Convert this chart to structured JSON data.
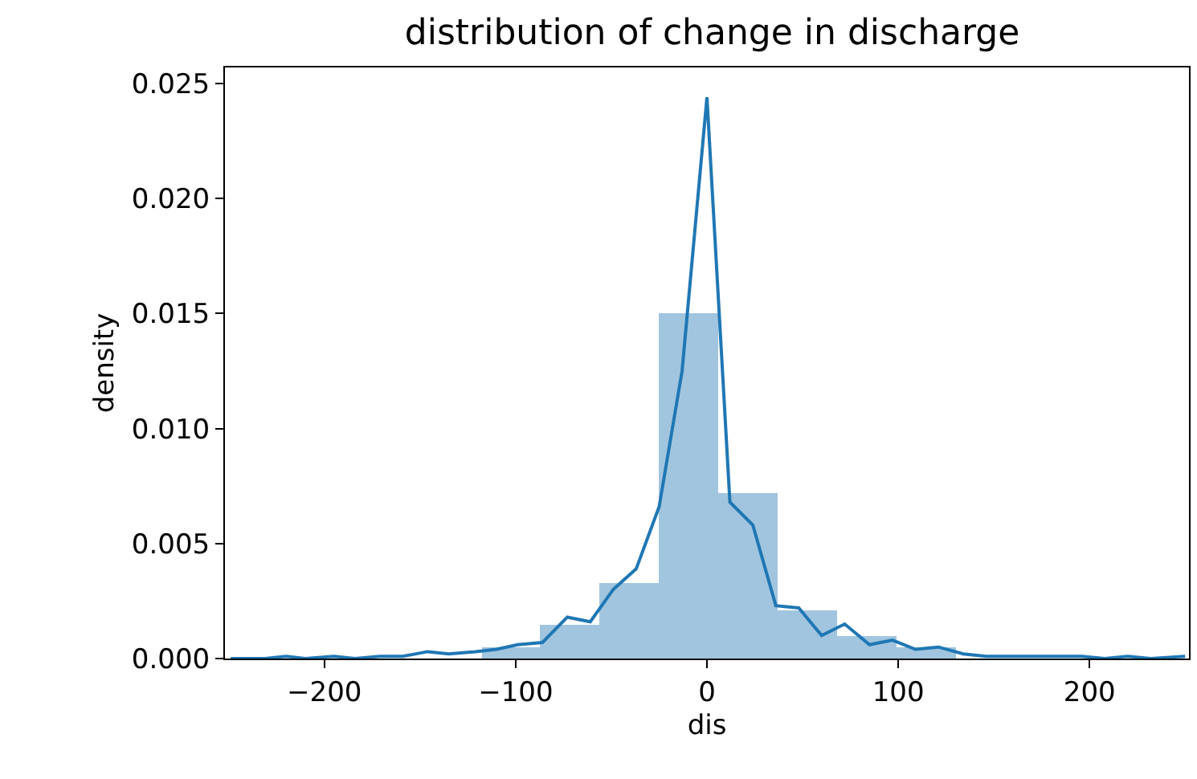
{
  "chart_data": {
    "type": "histogram",
    "title": "distribution of change in discharge",
    "xlabel": "dis",
    "ylabel": "density",
    "xlim": [
      -252,
      252
    ],
    "xticks": [
      {
        "value": -200,
        "label": "−200"
      },
      {
        "value": -100,
        "label": "−100"
      },
      0,
      100,
      200
    ],
    "ylim": [
      0,
      0.0257
    ],
    "yticks": [
      {
        "value": 0,
        "label": "0.000"
      },
      0.005,
      {
        "value": 0.01,
        "label": "0.010"
      },
      0.015,
      {
        "value": 0.02,
        "label": "0.020"
      },
      0.025
    ],
    "series": [
      {
        "color": "#a1c5df",
        "bins": [
          -118,
          -87,
          -56,
          -25,
          6,
          37,
          68,
          99,
          130
        ],
        "values": [
          0.00046,
          0.00145,
          0.00328,
          0.015,
          0.00719,
          0.00208,
          0.00098,
          0.00049
        ]
      },
      {
        "type": "line",
        "color": "#1f77b4",
        "x": [
          -249,
          -231,
          -220,
          -210,
          -195,
          -184,
          -171,
          -159,
          -146,
          -135,
          -121,
          -110,
          -99,
          -86,
          -73,
          -61,
          -49,
          -37,
          -25,
          -13,
          0,
          12,
          24,
          36,
          48,
          60,
          72,
          85,
          97,
          109,
          121,
          134,
          146,
          158,
          171,
          183,
          196,
          208,
          220,
          232,
          250
        ],
        "values": [
          0,
          0,
          0.0001,
          0,
          0.0001,
          0,
          0.0001,
          0.0001,
          0.0003,
          0.0002,
          0.0003,
          0.0004,
          0.0006,
          0.0007,
          0.0018,
          0.0016,
          0.003,
          0.0039,
          0.0066,
          0.0125,
          0.0244,
          0.0068,
          0.0058,
          0.0023,
          0.0022,
          0.001,
          0.0015,
          0.0006,
          0.0008,
          0.0004,
          0.0005,
          0.0002,
          0.0001,
          0.0001,
          0.0001,
          0.0001,
          0.0001,
          0,
          0.0001,
          0,
          0.0001
        ]
      }
    ]
  }
}
